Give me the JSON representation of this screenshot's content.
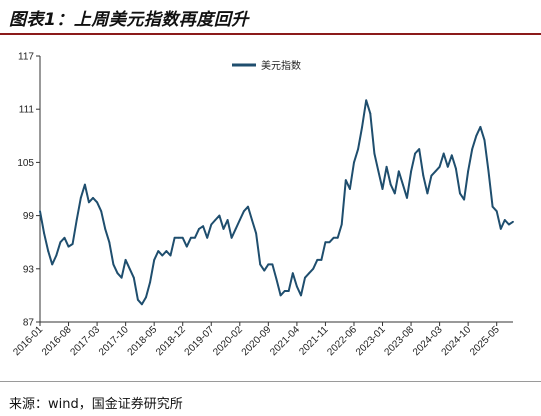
{
  "figure_title": "图表1：上周美元指数再度回升",
  "source_text": "来源：wind，国金证券研究所",
  "colors": {
    "line": "#1f4e6e",
    "title_rule": "#8b1a1a"
  },
  "chart_data": {
    "type": "line",
    "title": "",
    "xlabel": "",
    "ylabel": "",
    "ylim": [
      87,
      117
    ],
    "yticks": [
      87,
      93,
      99,
      105,
      111,
      117
    ],
    "xlim": [
      "2016-01",
      "2025-09"
    ],
    "xtick_labels": [
      "2016-01",
      "2016-08",
      "2017-03",
      "2017-10",
      "2018-05",
      "2018-12",
      "2019-07",
      "2020-02",
      "2020-09",
      "2021-04",
      "2021-11",
      "2022-06",
      "2023-01",
      "2023-08",
      "2024-03",
      "2024-10",
      "2025-05"
    ],
    "grid": false,
    "legend_position": "top-center",
    "series": [
      {
        "name": "美元指数",
        "x": [
          "2016-01",
          "2016-02",
          "2016-03",
          "2016-04",
          "2016-05",
          "2016-06",
          "2016-07",
          "2016-08",
          "2016-09",
          "2016-10",
          "2016-11",
          "2016-12",
          "2017-01",
          "2017-02",
          "2017-03",
          "2017-04",
          "2017-05",
          "2017-06",
          "2017-07",
          "2017-08",
          "2017-09",
          "2017-10",
          "2017-11",
          "2017-12",
          "2018-01",
          "2018-02",
          "2018-03",
          "2018-04",
          "2018-05",
          "2018-06",
          "2018-07",
          "2018-08",
          "2018-09",
          "2018-10",
          "2018-11",
          "2018-12",
          "2019-01",
          "2019-02",
          "2019-03",
          "2019-04",
          "2019-05",
          "2019-06",
          "2019-07",
          "2019-08",
          "2019-09",
          "2019-10",
          "2019-11",
          "2019-12",
          "2020-01",
          "2020-02",
          "2020-03",
          "2020-04",
          "2020-05",
          "2020-06",
          "2020-07",
          "2020-08",
          "2020-09",
          "2020-10",
          "2020-11",
          "2020-12",
          "2021-01",
          "2021-02",
          "2021-03",
          "2021-04",
          "2021-05",
          "2021-06",
          "2021-07",
          "2021-08",
          "2021-09",
          "2021-10",
          "2021-11",
          "2021-12",
          "2022-01",
          "2022-02",
          "2022-03",
          "2022-04",
          "2022-05",
          "2022-06",
          "2022-07",
          "2022-08",
          "2022-09",
          "2022-10",
          "2022-11",
          "2022-12",
          "2023-01",
          "2023-02",
          "2023-03",
          "2023-04",
          "2023-05",
          "2023-06",
          "2023-07",
          "2023-08",
          "2023-09",
          "2023-10",
          "2023-11",
          "2023-12",
          "2024-01",
          "2024-02",
          "2024-03",
          "2024-04",
          "2024-05",
          "2024-06",
          "2024-07",
          "2024-08",
          "2024-09",
          "2024-10",
          "2024-11",
          "2024-12",
          "2025-01",
          "2025-02",
          "2025-03",
          "2025-04",
          "2025-05",
          "2025-06",
          "2025-07",
          "2025-08",
          "2025-09"
        ],
        "values": [
          99.5,
          97.0,
          95.0,
          93.5,
          94.5,
          96.0,
          96.5,
          95.5,
          95.8,
          98.5,
          101.0,
          102.5,
          100.5,
          101.0,
          100.5,
          99.5,
          97.5,
          96.0,
          93.5,
          92.5,
          92.0,
          94.0,
          93.0,
          92.0,
          89.5,
          89.0,
          89.8,
          91.5,
          94.0,
          95.0,
          94.5,
          95.0,
          94.5,
          96.5,
          96.5,
          96.5,
          95.5,
          96.5,
          96.5,
          97.5,
          97.8,
          96.5,
          98.0,
          98.5,
          99.0,
          97.5,
          98.5,
          96.5,
          97.5,
          98.5,
          99.5,
          100.0,
          98.5,
          97.0,
          93.5,
          92.8,
          93.5,
          93.5,
          91.8,
          90.0,
          90.5,
          90.5,
          92.5,
          91.0,
          90.0,
          92.0,
          92.5,
          93.0,
          94.0,
          94.0,
          96.0,
          96.0,
          96.5,
          96.5,
          98.0,
          103.0,
          102.0,
          105.0,
          106.5,
          109.0,
          112.0,
          110.5,
          106.0,
          104.0,
          102.0,
          104.5,
          102.5,
          101.5,
          104.0,
          102.5,
          101.0,
          104.0,
          106.0,
          106.5,
          103.5,
          101.5,
          103.5,
          104.0,
          104.5,
          106.0,
          104.5,
          105.8,
          104.3,
          101.5,
          100.8,
          104.0,
          106.5,
          108.0,
          109.0,
          107.5,
          104.0,
          100.0,
          99.5,
          97.5,
          98.5,
          98.0,
          98.3
        ]
      }
    ]
  }
}
